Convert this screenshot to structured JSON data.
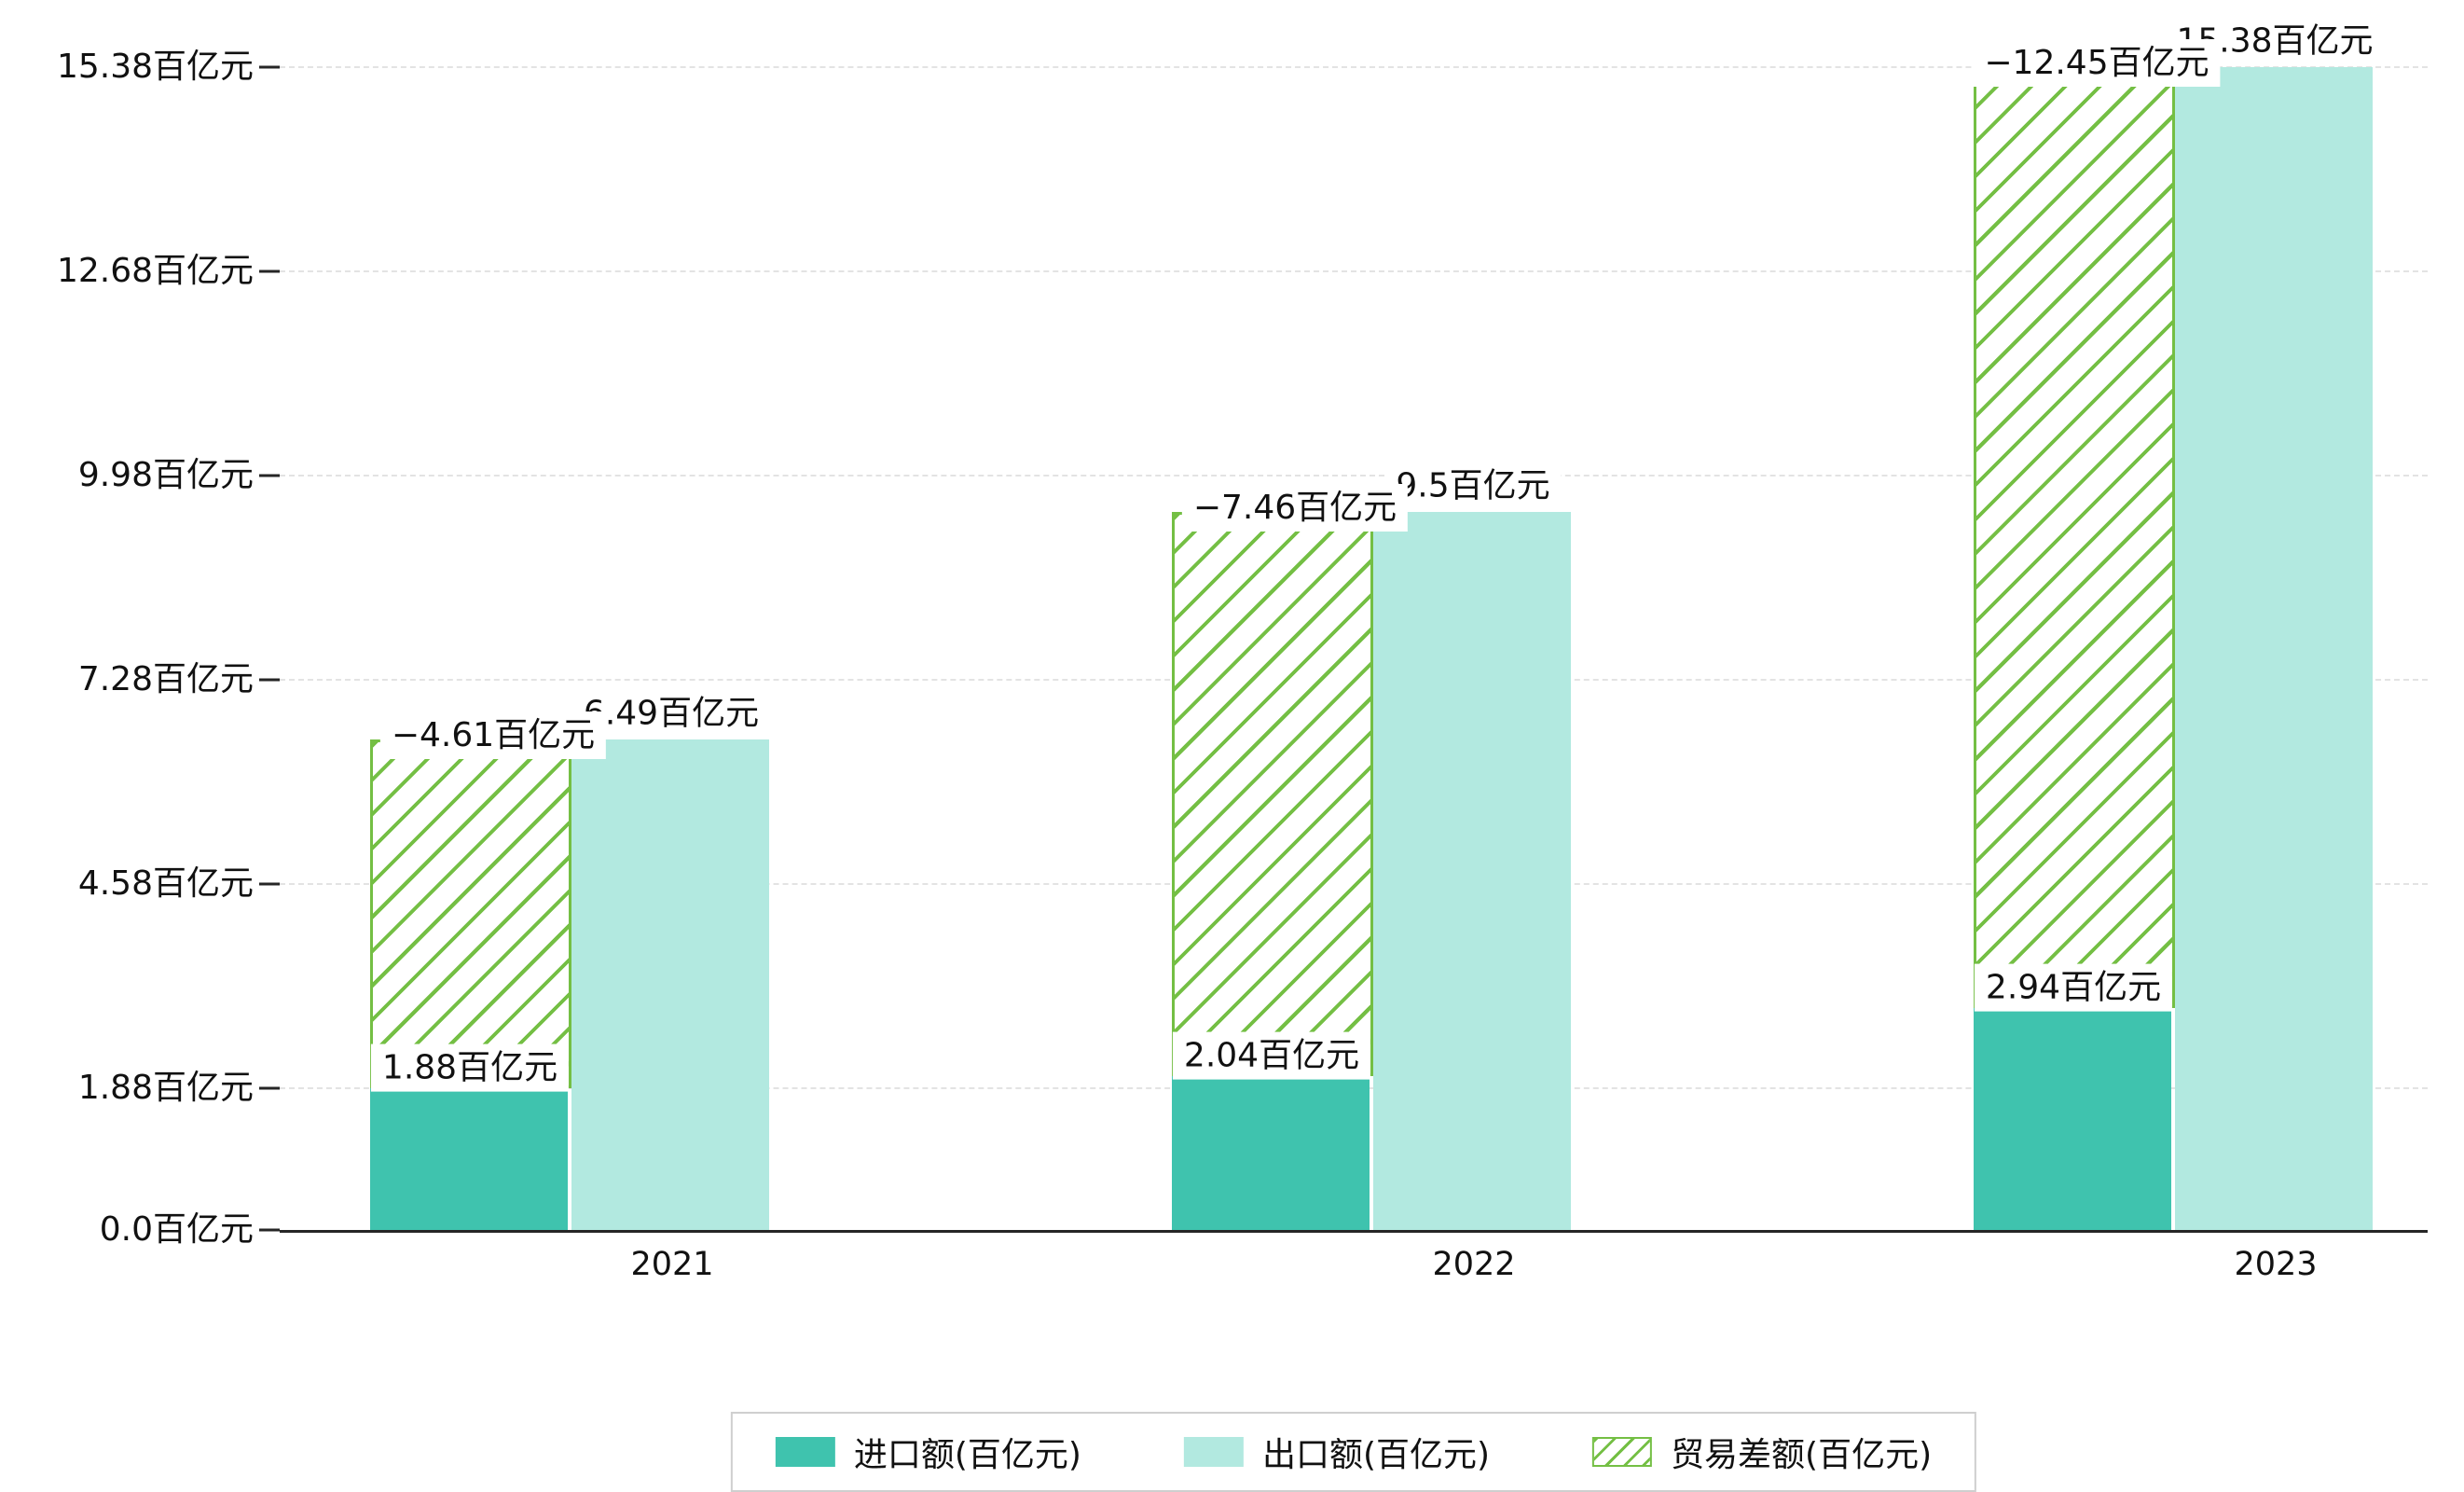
{
  "chart_data": {
    "type": "bar",
    "title": "",
    "categories": [
      "2021",
      "2022",
      "2023"
    ],
    "series": [
      {
        "name": "进口额(百亿元)",
        "key": "import",
        "color": "#3fc3ae",
        "style": "solid",
        "values": [
          1.88,
          2.04,
          2.94
        ],
        "value_labels": [
          "1.88百亿元",
          "2.04百亿元",
          "2.94百亿元"
        ]
      },
      {
        "name": "出口额(百亿元)",
        "key": "export",
        "color": "#b2e9e0",
        "style": "solid",
        "values": [
          6.49,
          9.5,
          15.38
        ],
        "value_labels": [
          "6.49百亿元",
          "9.5百亿元",
          "15.38百亿元"
        ]
      },
      {
        "name": "贸易差额(百亿元)",
        "key": "trade-balance",
        "color": "#74bf44",
        "style": "hatched",
        "values": [
          -4.61,
          -7.46,
          -12.45
        ],
        "value_labels": [
          "−4.61百亿元",
          "−7.46百亿元",
          "−12.45百亿元"
        ]
      }
    ],
    "y_ticks": [
      {
        "value": 0.0,
        "label": "0.0百亿元"
      },
      {
        "value": 1.88,
        "label": "1.88百亿元"
      },
      {
        "value": 4.58,
        "label": "4.58百亿元"
      },
      {
        "value": 7.28,
        "label": "7.28百亿元"
      },
      {
        "value": 9.98,
        "label": "9.98百亿元"
      },
      {
        "value": 12.68,
        "label": "12.68百亿元"
      },
      {
        "value": 15.38,
        "label": "15.38百亿元"
      }
    ],
    "ylim": [
      0,
      15.38
    ],
    "xlabel": "",
    "ylabel": "",
    "grid": "dashed-horizontal",
    "legend_position": "bottom-center",
    "notes": "贸易差额 bar is drawn hatched from the 进口额 value up to the 出口额 value; value label boxes partially overlap the export labels"
  }
}
